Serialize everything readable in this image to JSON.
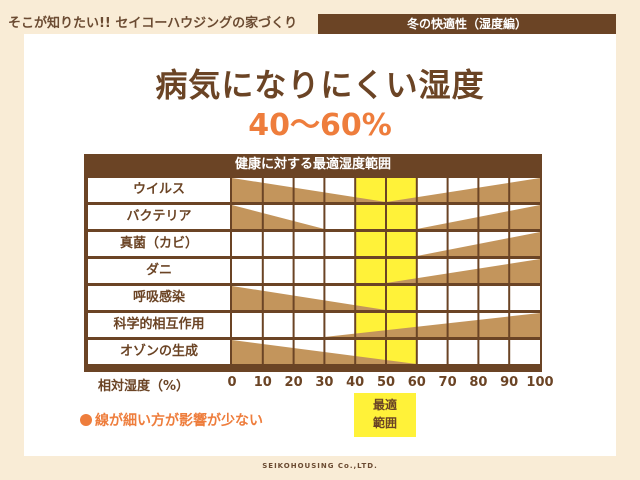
{
  "header": {
    "series_title": "そこが知りたい!! セイコーハウジングの家づくり",
    "topic": "冬の快適性（湿度編）"
  },
  "title": "病気になりにくい湿度",
  "subtitle": "40〜60%",
  "chart_data": {
    "type": "table",
    "title": "健康に対する最適湿度範囲",
    "xlabel": "相対湿度（%）",
    "x_ticks": [
      "0",
      "10",
      "20",
      "30",
      "40",
      "50",
      "60",
      "70",
      "80",
      "90",
      "100"
    ],
    "optimal_range": [
      40,
      60
    ],
    "optimal_label": "最適\n範囲",
    "rows": [
      {
        "name": "ウイルス",
        "left_wedge": [
          0,
          50
        ],
        "right_wedge": [
          50,
          100
        ]
      },
      {
        "name": "バクテリア",
        "left_wedge": [
          0,
          30
        ],
        "right_wedge": [
          60,
          100
        ]
      },
      {
        "name": "真菌（カビ）",
        "left_wedge": null,
        "right_wedge": [
          60,
          100
        ]
      },
      {
        "name": "ダニ",
        "left_wedge": null,
        "right_wedge": [
          50,
          100
        ]
      },
      {
        "name": "呼吸感染",
        "left_wedge": [
          0,
          50
        ],
        "right_wedge": null
      },
      {
        "name": "科学的相互作用",
        "left_wedge": null,
        "right_wedge": [
          30,
          100
        ]
      },
      {
        "name": "オゾンの生成",
        "left_wedge": [
          0,
          60
        ],
        "right_wedge": null
      }
    ],
    "colors": {
      "wedge": "#c3955c",
      "optimal": "#fff239",
      "frame": "#6b4425"
    }
  },
  "legend": "線が細い方が影響が少ない",
  "footer": "SEIKOHOUSING Co.,LTD."
}
